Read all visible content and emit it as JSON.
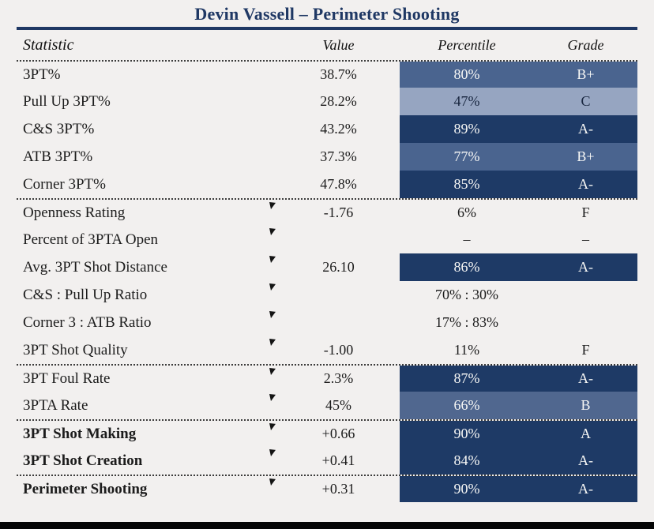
{
  "header": {
    "title": "Devin Vassell – Perimeter Shooting"
  },
  "columns": [
    "Statistic",
    "Value",
    "Percentile",
    "Grade"
  ],
  "colors": {
    "page_bg": "#F2F0EF",
    "title_navy": "#1F3864",
    "bottom_bar": "#050505",
    "bands": {
      "dark": {
        "bg": "#1E3A66",
        "fg": "#F8F8F6"
      },
      "medium": {
        "bg": "#4A648F",
        "fg": "#F8F8F6"
      },
      "medium2": {
        "bg": "#50678F",
        "fg": "#F8F8F6"
      },
      "light": {
        "bg": "#96A5C1",
        "fg": "#18263F"
      }
    }
  },
  "chart_data": {
    "type": "table",
    "title": "Devin Vassell – Perimeter Shooting",
    "columns": [
      "Statistic",
      "Value",
      "Percentile",
      "Grade"
    ]
  },
  "rows": [
    {
      "label": "3PT%",
      "value": "38.7%",
      "pct": "80%",
      "grade": "B+",
      "band": "medium",
      "marker": false,
      "bold": false,
      "dotted_top": true
    },
    {
      "label": "Pull Up 3PT%",
      "value": "28.2%",
      "pct": "47%",
      "grade": "C",
      "band": "light",
      "marker": false,
      "bold": false,
      "dotted_top": false
    },
    {
      "label": "C&S 3PT%",
      "value": "43.2%",
      "pct": "89%",
      "grade": "A-",
      "band": "dark",
      "marker": false,
      "bold": false,
      "dotted_top": false
    },
    {
      "label": "ATB 3PT%",
      "value": "37.3%",
      "pct": "77%",
      "grade": "B+",
      "band": "medium",
      "marker": false,
      "bold": false,
      "dotted_top": false
    },
    {
      "label": "Corner 3PT%",
      "value": "47.8%",
      "pct": "85%",
      "grade": "A-",
      "band": "dark",
      "marker": false,
      "bold": false,
      "dotted_top": false
    },
    {
      "label": "Openness Rating",
      "value": "-1.76",
      "pct": "6%",
      "grade": "F",
      "band": null,
      "marker": true,
      "bold": false,
      "dotted_top": true
    },
    {
      "label": "Percent of 3PTA Open",
      "value": "",
      "pct": "–",
      "grade": "–",
      "band": null,
      "marker": true,
      "bold": false,
      "dotted_top": false
    },
    {
      "label": "Avg. 3PT Shot Distance",
      "value": "26.10",
      "pct": "86%",
      "grade": "A-",
      "band": "dark",
      "marker": true,
      "bold": false,
      "dotted_top": false
    },
    {
      "label": "C&S : Pull Up Ratio",
      "value": "",
      "pct": "70% : 30%",
      "grade": "",
      "band": null,
      "marker": true,
      "bold": false,
      "dotted_top": false
    },
    {
      "label": "Corner 3 : ATB Ratio",
      "value": "",
      "pct": "17% : 83%",
      "grade": "",
      "band": null,
      "marker": true,
      "bold": false,
      "dotted_top": false
    },
    {
      "label": "3PT Shot Quality",
      "value": "-1.00",
      "pct": "11%",
      "grade": "F",
      "band": null,
      "marker": true,
      "bold": false,
      "dotted_top": false
    },
    {
      "label": "3PT Foul Rate",
      "value": "2.3%",
      "pct": "87%",
      "grade": "A-",
      "band": "dark",
      "marker": true,
      "bold": false,
      "dotted_top": true
    },
    {
      "label": "3PTA Rate",
      "value": "45%",
      "pct": "66%",
      "grade": "B",
      "band": "medium2",
      "marker": true,
      "bold": false,
      "dotted_top": false
    },
    {
      "label": "3PT Shot Making",
      "value": "+0.66",
      "pct": "90%",
      "grade": "A",
      "band": "dark",
      "marker": true,
      "bold": true,
      "dotted_top": true
    },
    {
      "label": "3PT Shot Creation",
      "value": "+0.41",
      "pct": "84%",
      "grade": "A-",
      "band": "dark",
      "marker": true,
      "bold": true,
      "dotted_top": false
    },
    {
      "label": "Perimeter Shooting",
      "value": "+0.31",
      "pct": "90%",
      "grade": "A-",
      "band": "dark",
      "marker": true,
      "bold": true,
      "dotted_top": true
    }
  ]
}
